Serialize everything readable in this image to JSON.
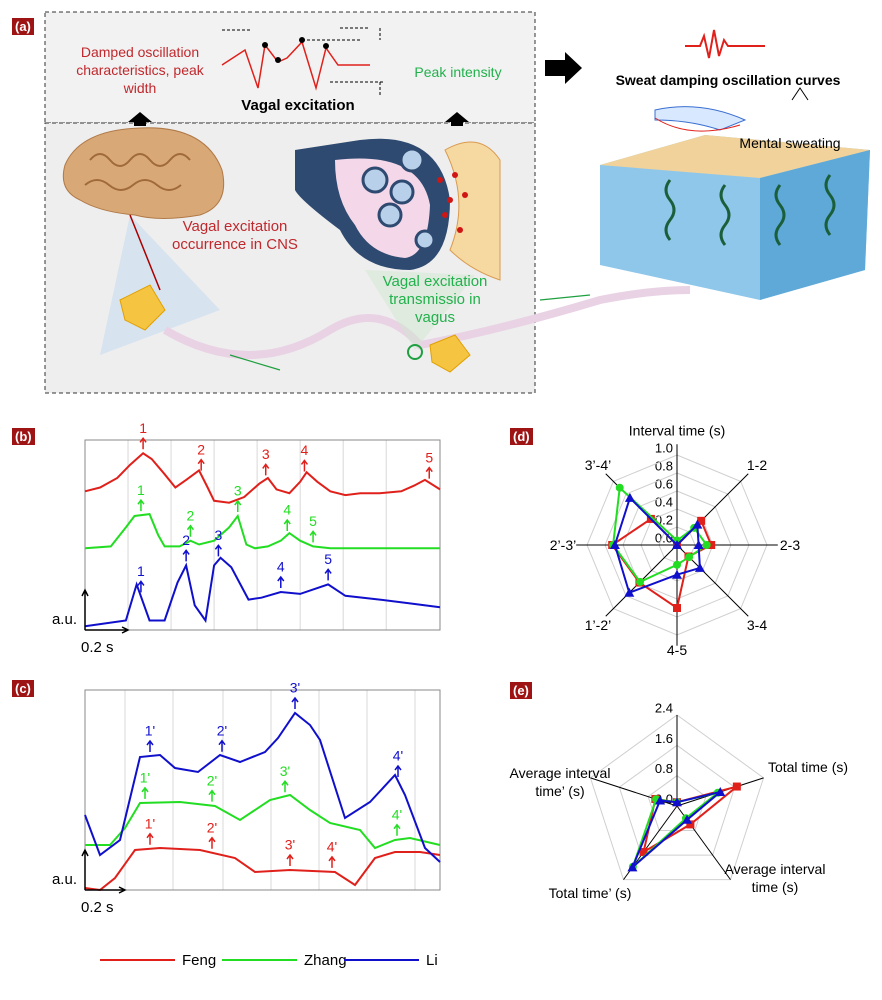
{
  "diagram": {
    "label": "(a)",
    "left_note": "Damped oscillation characteristics, peak width",
    "center_title": "Vagal excitation",
    "right_note": "Peak intensity",
    "output_title": "Sweat damping oscillation curves",
    "skin_note": "Mental sweating",
    "cns_note": "Vagal excitation occurrence in CNS",
    "vagus_note": "Vagal excitation transmissio in vagus"
  },
  "chart_data": [
    {
      "type": "line",
      "label": "(b)",
      "ylabel": "a.u.",
      "scale_bar": {
        "label": "0.2 s",
        "value": 0.2
      },
      "xlim": [
        0,
        1.65
      ],
      "ylim": [
        0,
        100
      ],
      "xticks": [
        0.2,
        0.4,
        0.6,
        0.8,
        1.0,
        1.2,
        1.4
      ],
      "grid": true,
      "series": [
        {
          "name": "Feng",
          "color": "#e0201b",
          "x": [
            0,
            0.07,
            0.15,
            0.21,
            0.27,
            0.31,
            0.37,
            0.42,
            0.47,
            0.53,
            0.57,
            0.6,
            0.67,
            0.74,
            0.81,
            0.85,
            0.89,
            0.95,
            1.0,
            1.03,
            1.08,
            1.14,
            1.21,
            1.28,
            1.37,
            1.47,
            1.53,
            1.58,
            1.65
          ],
          "values": [
            73,
            75,
            80,
            87,
            93,
            90,
            82,
            75,
            79,
            84,
            75,
            68,
            67,
            70,
            77,
            80,
            74,
            72,
            78,
            83,
            78,
            73,
            71,
            72,
            72,
            73,
            76,
            79,
            74
          ],
          "peak_labels": [
            "1",
            "2",
            "3",
            "4",
            "5"
          ],
          "peak_x": [
            0.27,
            0.54,
            0.84,
            1.02,
            1.6
          ]
        },
        {
          "name": "Zhang",
          "color": "#22dd22",
          "x": [
            0,
            0.12,
            0.19,
            0.23,
            0.3,
            0.34,
            0.37,
            0.44,
            0.49,
            0.53,
            0.6,
            0.67,
            0.71,
            0.75,
            0.79,
            0.85,
            0.91,
            0.95,
            1.0,
            1.06,
            1.14,
            1.65
          ],
          "values": [
            43,
            44,
            54,
            60,
            61,
            50,
            44,
            44,
            47,
            45,
            47,
            54,
            60,
            45,
            43,
            44,
            47,
            51,
            47,
            44,
            43,
            43
          ],
          "peak_labels": [
            "1",
            "2",
            "3",
            "4",
            "5"
          ],
          "peak_x": [
            0.26,
            0.49,
            0.71,
            0.94,
            1.06
          ]
        },
        {
          "name": "Li",
          "color": "#1010cc",
          "x": [
            0,
            0.19,
            0.24,
            0.3,
            0.37,
            0.43,
            0.47,
            0.51,
            0.56,
            0.6,
            0.63,
            0.68,
            0.76,
            0.82,
            0.91,
            1.0,
            1.13,
            1.21,
            1.37,
            1.51,
            1.65
          ],
          "values": [
            2,
            5,
            24,
            5,
            5,
            25,
            34,
            13,
            5,
            34,
            38,
            33,
            16,
            17,
            20,
            19,
            24,
            18,
            16,
            14,
            12
          ],
          "peak_labels": [
            "1",
            "2",
            "3",
            "4",
            "5"
          ],
          "peak_x": [
            0.26,
            0.47,
            0.62,
            0.91,
            1.13
          ]
        }
      ]
    },
    {
      "type": "line",
      "label": "(c)",
      "ylabel": "a.u.",
      "scale_bar": {
        "label": "0.2 s",
        "value": 0.2
      },
      "xlim": [
        0,
        1.775
      ],
      "ylim": [
        0,
        100
      ],
      "xticks": [
        0.2,
        0.44,
        0.69,
        0.93,
        1.17,
        1.41,
        1.65
      ],
      "grid": true,
      "series": [
        {
          "name": "Feng",
          "color": "#e0201b",
          "x": [
            0,
            0.075,
            0.15,
            0.25,
            0.375,
            0.575,
            0.75,
            0.85,
            1.025,
            1.25,
            1.35,
            1.45,
            1.55,
            1.675,
            1.775
          ],
          "values": [
            1,
            0,
            6,
            20,
            21,
            20,
            16,
            9,
            10,
            9,
            2.5,
            16,
            19,
            19,
            17.5
          ],
          "peak_labels": [
            "1'",
            "2'",
            "3'",
            "4'"
          ],
          "peak_x": [
            0.325,
            0.635,
            1.025,
            1.235
          ]
        },
        {
          "name": "Zhang",
          "color": "#22dd22",
          "x": [
            0,
            0.125,
            0.2,
            0.275,
            0.475,
            0.65,
            0.775,
            0.925,
            1.025,
            1.125,
            1.225,
            1.375,
            1.45,
            1.55,
            1.625,
            1.775
          ],
          "values": [
            22.5,
            22.5,
            31,
            43.5,
            44,
            42,
            35,
            45,
            47.5,
            40,
            33.5,
            30,
            21,
            25,
            26,
            22.5
          ],
          "peak_labels": [
            "1'",
            "2'",
            "3'",
            "4'"
          ],
          "peak_x": [
            0.3,
            0.635,
            1.0,
            1.56
          ]
        },
        {
          "name": "Li",
          "color": "#1010cc",
          "x": [
            0,
            0.075,
            0.175,
            0.275,
            0.375,
            0.45,
            0.565,
            0.675,
            0.775,
            0.9,
            0.965,
            1.05,
            1.125,
            1.175,
            1.3,
            1.425,
            1.55,
            1.6,
            1.7,
            1.775
          ],
          "values": [
            37.5,
            17.5,
            25,
            66.5,
            67.5,
            61,
            59,
            67.5,
            64,
            69,
            76,
            88.5,
            82.5,
            75,
            36,
            44,
            57.5,
            47.5,
            21,
            14
          ],
          "peak_labels": [
            "1'",
            "2'",
            "3'",
            "4'"
          ],
          "peak_x": [
            0.325,
            0.685,
            1.05,
            1.565
          ]
        }
      ]
    },
    {
      "type": "radar",
      "label": "(d)",
      "title": "Interval time (s)",
      "categories": [
        null,
        "1-2",
        "2-3",
        "3-4",
        "4-5",
        "1’-2’",
        "2’-3’",
        "3’-4’"
      ],
      "rlim": [
        0,
        1
      ],
      "rticks": [
        {
          "value": 0,
          "label": "0.0"
        },
        {
          "value": 0.2,
          "label": "0.2"
        },
        {
          "value": 0.4,
          "label": "0.4"
        },
        {
          "value": 0.6,
          "label": "0.6"
        },
        {
          "value": 0.8,
          "label": "0.8"
        },
        {
          "value": 1,
          "label": "1.0"
        }
      ],
      "series": [
        {
          "name": "Feng",
          "color": "#e0201b",
          "marker": "square",
          "values": [
            0,
            0.38,
            0.38,
            0.18,
            0.7,
            0.59,
            0.72,
            0.41
          ]
        },
        {
          "name": "Zhang",
          "color": "#22dd22",
          "marker": "circle",
          "values": [
            0.05,
            0.27,
            0.33,
            0.19,
            0.22,
            0.58,
            0.71,
            0.9
          ]
        },
        {
          "name": "Li",
          "color": "#1010cc",
          "marker": "triangle",
          "values": [
            0,
            0.32,
            0.24,
            0.36,
            0.33,
            0.75,
            0.69,
            0.74
          ]
        }
      ]
    },
    {
      "type": "radar",
      "label": "(e)",
      "categories": [
        null,
        "Total time (s)",
        "Average interval time (s)",
        "Total time’ (s)",
        "Average interval time’ (s)"
      ],
      "rlim": [
        0,
        2.4
      ],
      "rticks": [
        {
          "value": 0,
          "label": "0.0"
        },
        {
          "value": 0.8,
          "label": "0.8"
        },
        {
          "value": 1.6,
          "label": "1.6"
        },
        {
          "value": 2.4,
          "label": "2.4"
        }
      ],
      "series": [
        {
          "name": "Feng",
          "color": "#e0201b",
          "marker": "square",
          "values": [
            0.1,
            1.66,
            0.6,
            1.5,
            0.6
          ]
        },
        {
          "name": "Zhang",
          "color": "#22dd22",
          "marker": "circle",
          "values": [
            0.1,
            1.13,
            0.4,
            1.98,
            0.58
          ]
        },
        {
          "name": "Li",
          "color": "#1010cc",
          "marker": "triangle",
          "values": [
            0.1,
            1.2,
            0.45,
            2.0,
            0.47
          ]
        }
      ]
    }
  ]
}
